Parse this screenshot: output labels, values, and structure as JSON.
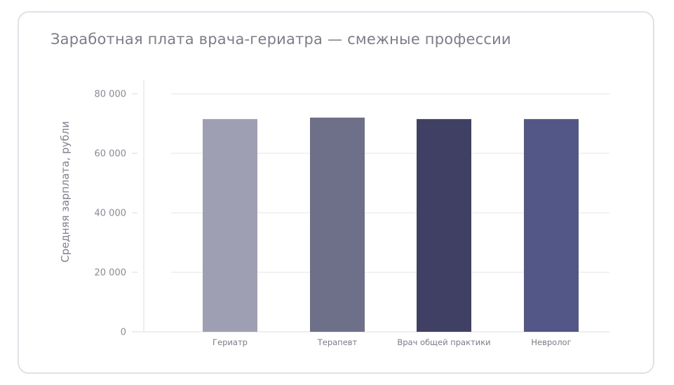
{
  "chart_data": {
    "type": "bar",
    "title": "Заработная плата врача-гериатра — смежные профессии",
    "xlabel": "",
    "ylabel": "Средняя зарплата, рубли",
    "categories": [
      "Гериатр",
      "Терапевт",
      "Врач общей практики",
      "Невролог"
    ],
    "values": [
      71500,
      72000,
      71500,
      71500
    ],
    "bar_colors": [
      "#9e9fb3",
      "#6e6f89",
      "#3f4063",
      "#525788"
    ],
    "ylim": [
      0,
      80000
    ],
    "yticks": [
      0,
      20000,
      40000,
      60000,
      80000
    ],
    "ytick_labels": [
      "0",
      "20 000",
      "40 000",
      "60 000",
      "80 000"
    ],
    "grid": true,
    "legend": "none"
  }
}
